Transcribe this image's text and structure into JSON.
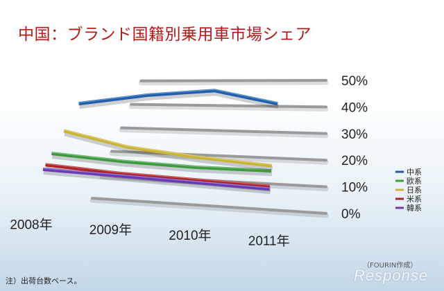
{
  "page": {
    "title": "中国：ブランド国籍別乗用車市場シェア",
    "note": "注）出荷台数ベース。",
    "credit": "（FOURIN作成）",
    "watermark": "Response"
  },
  "chart_data": {
    "type": "line",
    "categories": [
      "2008年",
      "2009年",
      "2010年",
      "2011年"
    ],
    "ylim": [
      0,
      50
    ],
    "y_ticks": [
      "0%",
      "10%",
      "20%",
      "30%",
      "40%",
      "50%"
    ],
    "grid": true,
    "legend_position": "right",
    "series": [
      {
        "name": "中系",
        "color": "#1f5fae",
        "values": [
          40,
          44,
          46,
          41
        ]
      },
      {
        "name": "欧系",
        "color": "#3f9a3f",
        "values": [
          18,
          16,
          15,
          15
        ]
      },
      {
        "name": "日系",
        "color": "#c9b437",
        "values": [
          28,
          22,
          19,
          17
        ]
      },
      {
        "name": "米系",
        "color": "#b02424",
        "values": [
          13,
          11,
          10,
          9
        ]
      },
      {
        "name": "韓系",
        "color": "#6a3ab5",
        "values": [
          11,
          10,
          9,
          8
        ]
      }
    ]
  }
}
